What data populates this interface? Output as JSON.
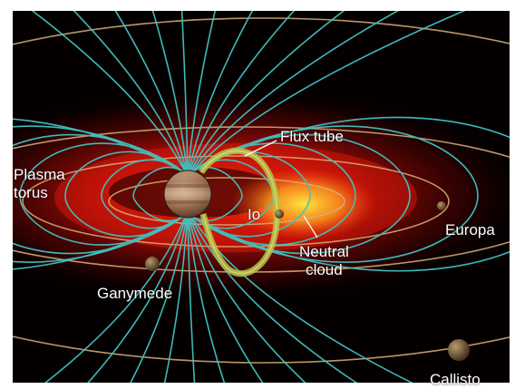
{
  "labels": {
    "flux_tube": "Flux tube",
    "plasma_torus": [
      "Plasma",
      "torus"
    ],
    "io": "Io",
    "neutral_cloud": [
      "Neutral",
      "cloud"
    ],
    "europa": "Europa",
    "ganymede": "Ganymede",
    "callisto": "Callisto"
  },
  "colors": {
    "background": "#050000",
    "field_lines": "#3fc4c4",
    "torus_glow": "#e01010",
    "neutral_cloud": "#ffd21a",
    "orbit": "#d9b07a",
    "flux_tube": "#b6c24a",
    "label_text": "#ffffff"
  }
}
